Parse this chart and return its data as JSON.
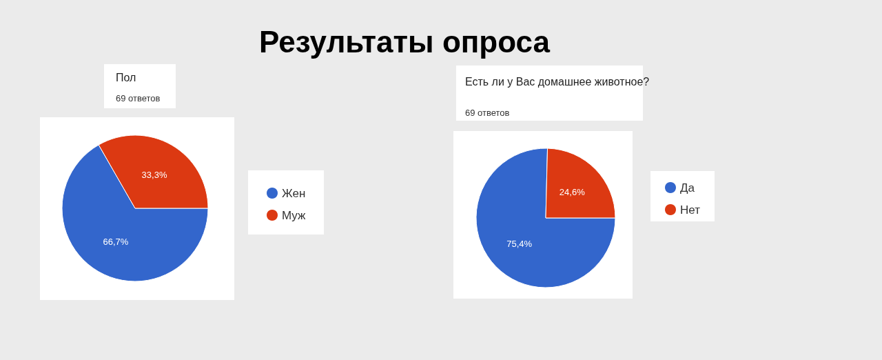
{
  "chart_data": [
    {
      "type": "pie",
      "title": "Пол",
      "subtitle": "69 ответов",
      "annotations": [
        "Результаты опроса"
      ],
      "categories": [
        "Жен",
        "Муж"
      ],
      "values": [
        66.7,
        33.3
      ],
      "colors": [
        "#3366cc",
        "#dc3912"
      ],
      "value_labels": [
        "66,7%",
        "33,3%"
      ],
      "legend": "right"
    },
    {
      "type": "pie",
      "title": "Есть ли у Вас домашнее животное?",
      "subtitle": "69 ответов",
      "categories": [
        "Да",
        "Нет"
      ],
      "values": [
        75.4,
        24.6
      ],
      "colors": [
        "#3366cc",
        "#dc3912"
      ],
      "value_labels": [
        "75,4%",
        "24,6%"
      ],
      "legend": "right"
    }
  ]
}
